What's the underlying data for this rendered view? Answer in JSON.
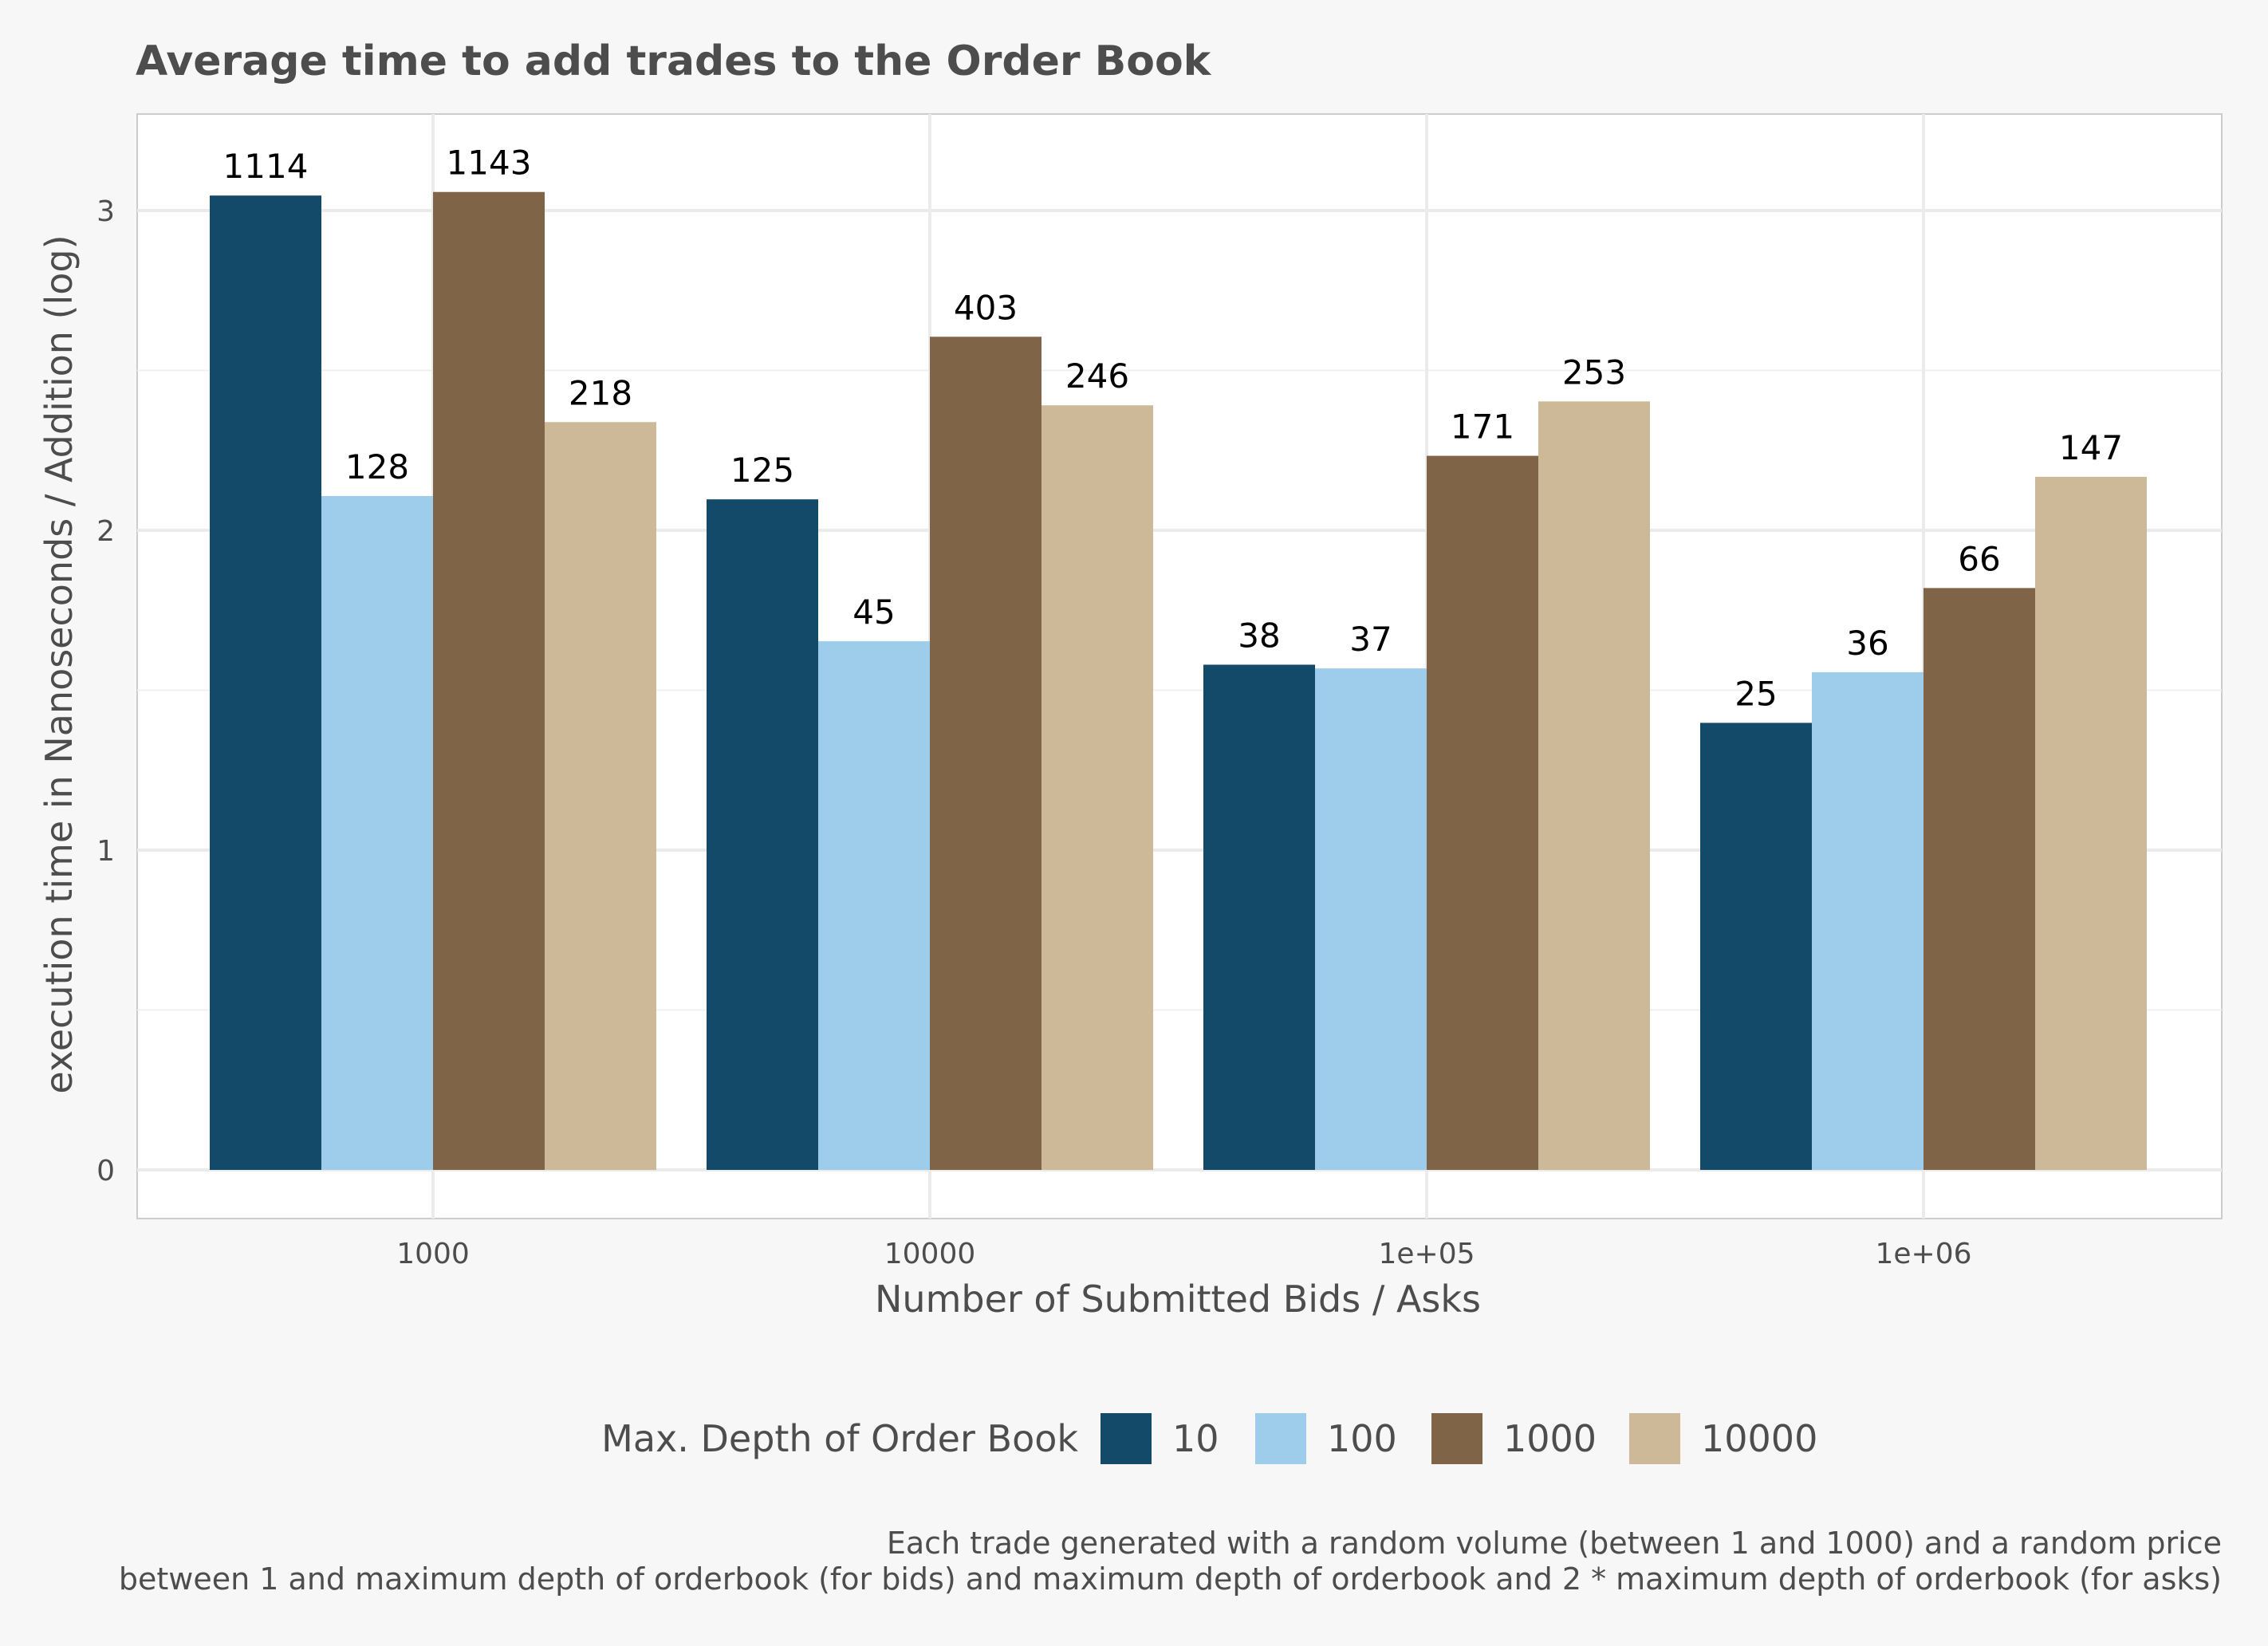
{
  "chart_data": {
    "type": "bar",
    "title": "Average time to add trades to the Order Book",
    "xlabel": "Number of Submitted Bids / Asks",
    "ylabel": "execution time in Nanoseconds / Addition (log)",
    "categories": [
      "1000",
      "10000",
      "1e+05",
      "1e+06"
    ],
    "y_scale": "log10",
    "ylim": [
      0,
      3.2
    ],
    "yticks": [
      0,
      1,
      2,
      3
    ],
    "grid": true,
    "legend": {
      "title": "Max. Depth of Order Book",
      "position": "bottom"
    },
    "series": [
      {
        "name": "10",
        "color": "#134a69",
        "values": [
          1114,
          125,
          38,
          25
        ],
        "labels": [
          "1114",
          "125",
          "38",
          "25"
        ]
      },
      {
        "name": "100",
        "color": "#9ecdeb",
        "values": [
          128,
          45,
          37,
          36
        ],
        "labels": [
          "128",
          "45",
          "37",
          "36"
        ]
      },
      {
        "name": "1000",
        "color": "#806448",
        "values": [
          1143,
          403,
          171,
          66
        ],
        "labels": [
          "1143",
          "403",
          "171",
          "66"
        ]
      },
      {
        "name": "10000",
        "color": "#cdb997",
        "values": [
          218,
          246,
          253,
          147
        ],
        "labels": [
          "218",
          "246",
          "253",
          "147"
        ]
      }
    ],
    "caption": [
      "Each trade generated with a random volume (between 1 and 1000) and a random price",
      "between 1 and maximum depth of orderbook (for bids) and maximum depth of orderbook and 2 * maximum depth of orderbook (for asks)"
    ]
  }
}
